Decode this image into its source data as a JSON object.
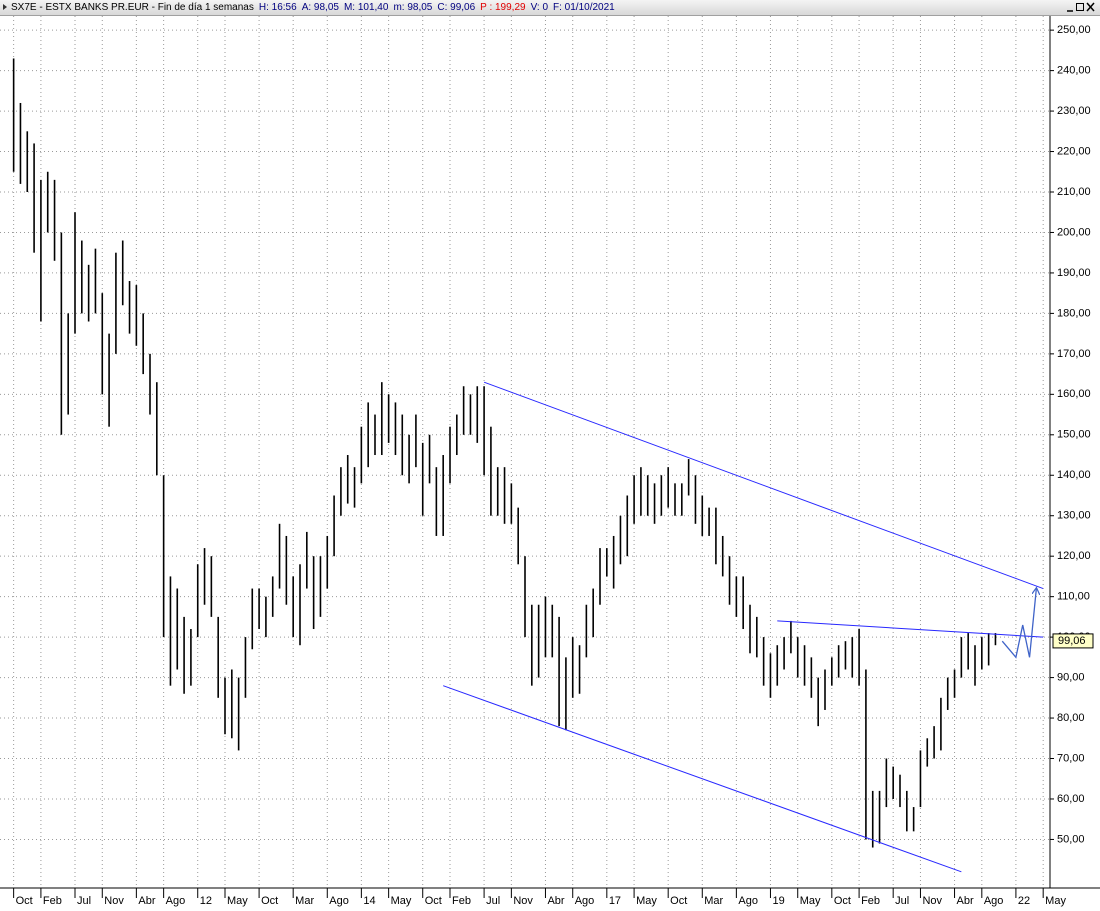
{
  "header": {
    "title": "SX7E - ESTX BANKS PR.EUR - Fin de día 1 semanas",
    "fields": [
      {
        "text": "H: 16:56",
        "color": "#000080"
      },
      {
        "text": "A: 98,05",
        "color": "#000080"
      },
      {
        "text": "M: 101,40",
        "color": "#000080"
      },
      {
        "text": "m: 98,05",
        "color": "#000080"
      },
      {
        "text": "C: 99,06",
        "color": "#000080"
      },
      {
        "text": "P : 199,29",
        "color": "#e00000"
      },
      {
        "text": "V: 0",
        "color": "#000080"
      },
      {
        "text": "F: 01/10/2021",
        "color": "#000080"
      }
    ]
  },
  "chart_data": {
    "type": "hilo",
    "color": "#000000",
    "grid": true,
    "x": [
      "2009-10",
      "2009-11",
      "2009-12",
      "2010-01",
      "2010-02",
      "2010-03",
      "2010-04",
      "2010-05",
      "2010-06",
      "2010-07",
      "2010-08",
      "2010-09",
      "2010-10",
      "2010-11",
      "2010-12",
      "2011-01",
      "2011-02",
      "2011-03",
      "2011-04",
      "2011-05",
      "2011-06",
      "2011-07",
      "2011-08",
      "2011-09",
      "2011-10",
      "2011-11",
      "2011-12",
      "2012-01",
      "2012-02",
      "2012-03",
      "2012-04",
      "2012-05",
      "2012-06",
      "2012-07",
      "2012-08",
      "2012-09",
      "2012-10",
      "2012-11",
      "2012-12",
      "2013-01",
      "2013-02",
      "2013-03",
      "2013-04",
      "2013-05",
      "2013-06",
      "2013-07",
      "2013-08",
      "2013-09",
      "2013-10",
      "2013-11",
      "2013-12",
      "2014-01",
      "2014-02",
      "2014-03",
      "2014-04",
      "2014-05",
      "2014-06",
      "2014-07",
      "2014-08",
      "2014-09",
      "2014-10",
      "2014-11",
      "2014-12",
      "2015-01",
      "2015-02",
      "2015-03",
      "2015-04",
      "2015-05",
      "2015-06",
      "2015-07",
      "2015-08",
      "2015-09",
      "2015-10",
      "2015-11",
      "2015-12",
      "2016-01",
      "2016-02",
      "2016-03",
      "2016-04",
      "2016-05",
      "2016-06",
      "2016-07",
      "2016-08",
      "2016-09",
      "2016-10",
      "2016-11",
      "2016-12",
      "2017-01",
      "2017-02",
      "2017-03",
      "2017-04",
      "2017-05",
      "2017-06",
      "2017-07",
      "2017-08",
      "2017-09",
      "2017-10",
      "2017-11",
      "2017-12",
      "2018-01",
      "2018-02",
      "2018-03",
      "2018-04",
      "2018-05",
      "2018-06",
      "2018-07",
      "2018-08",
      "2018-09",
      "2018-10",
      "2018-11",
      "2018-12",
      "2019-01",
      "2019-02",
      "2019-03",
      "2019-04",
      "2019-05",
      "2019-06",
      "2019-07",
      "2019-08",
      "2019-09",
      "2019-10",
      "2019-11",
      "2019-12",
      "2020-01",
      "2020-02",
      "2020-03",
      "2020-04",
      "2020-05",
      "2020-06",
      "2020-07",
      "2020-08",
      "2020-09",
      "2020-10",
      "2020-11",
      "2020-12",
      "2021-01",
      "2021-02",
      "2021-03",
      "2021-04",
      "2021-05",
      "2021-06",
      "2021-07",
      "2021-08",
      "2021-09",
      "2021-10"
    ],
    "high": [
      243,
      232,
      225,
      222,
      213,
      215,
      213,
      200,
      180,
      205,
      198,
      192,
      196,
      185,
      175,
      195,
      198,
      188,
      187,
      180,
      170,
      163,
      140,
      115,
      112,
      105,
      102,
      118,
      122,
      120,
      105,
      90,
      92,
      90,
      100,
      112,
      112,
      110,
      115,
      128,
      125,
      115,
      118,
      126,
      120,
      120,
      125,
      135,
      142,
      145,
      142,
      152,
      158,
      155,
      163,
      160,
      158,
      155,
      150,
      155,
      148,
      150,
      142,
      145,
      152,
      155,
      162,
      160,
      162,
      162,
      152,
      142,
      142,
      138,
      132,
      120,
      108,
      108,
      110,
      108,
      105,
      95,
      100,
      98,
      108,
      112,
      122,
      122,
      125,
      130,
      135,
      140,
      142,
      140,
      138,
      140,
      142,
      138,
      138,
      144,
      140,
      135,
      132,
      132,
      125,
      120,
      115,
      115,
      108,
      105,
      100,
      96,
      98,
      100,
      104,
      100,
      98,
      95,
      90,
      92,
      95,
      98,
      99,
      100,
      102,
      92,
      62,
      62,
      70,
      68,
      66,
      62,
      58,
      72,
      75,
      78,
      85,
      90,
      92,
      100,
      101,
      98,
      100,
      101,
      101
    ],
    "low": [
      215,
      212,
      210,
      195,
      178,
      200,
      193,
      150,
      155,
      175,
      180,
      178,
      180,
      160,
      152,
      170,
      182,
      175,
      172,
      165,
      155,
      140,
      100,
      88,
      92,
      86,
      88,
      100,
      108,
      105,
      85,
      76,
      75,
      72,
      85,
      97,
      102,
      100,
      105,
      112,
      108,
      100,
      98,
      112,
      102,
      105,
      112,
      120,
      130,
      133,
      132,
      138,
      142,
      145,
      145,
      148,
      145,
      140,
      138,
      142,
      130,
      138,
      125,
      125,
      138,
      145,
      150,
      150,
      148,
      140,
      130,
      130,
      128,
      128,
      118,
      100,
      88,
      90,
      95,
      95,
      78,
      77,
      85,
      86,
      95,
      100,
      108,
      115,
      112,
      118,
      120,
      128,
      130,
      130,
      128,
      130,
      132,
      130,
      130,
      135,
      128,
      125,
      125,
      118,
      115,
      108,
      105,
      102,
      96,
      95,
      88,
      85,
      88,
      92,
      96,
      90,
      88,
      85,
      78,
      82,
      88,
      90,
      92,
      90,
      88,
      50,
      48,
      49,
      58,
      60,
      58,
      52,
      52,
      58,
      68,
      70,
      72,
      82,
      85,
      90,
      92,
      88,
      92,
      93,
      98
    ],
    "xlim": [
      "2009-08",
      "2022-06"
    ],
    "xticks": [
      {
        "value": "2009-10",
        "label": "Oct"
      },
      {
        "value": "2010-02",
        "label": "Feb"
      },
      {
        "value": "2010-07",
        "label": "Jul"
      },
      {
        "value": "2010-11",
        "label": "Nov"
      },
      {
        "value": "2011-04",
        "label": "Abr"
      },
      {
        "value": "2011-08",
        "label": "Ago"
      },
      {
        "value": "2012-01",
        "label": "12"
      },
      {
        "value": "2012-05",
        "label": "May"
      },
      {
        "value": "2012-10",
        "label": "Oct"
      },
      {
        "value": "2013-03",
        "label": "Mar"
      },
      {
        "value": "2013-08",
        "label": "Ago"
      },
      {
        "value": "2014-01",
        "label": "14"
      },
      {
        "value": "2014-05",
        "label": "May"
      },
      {
        "value": "2014-10",
        "label": "Oct"
      },
      {
        "value": "2015-02",
        "label": "Feb"
      },
      {
        "value": "2015-07",
        "label": "Jul"
      },
      {
        "value": "2015-11",
        "label": "Nov"
      },
      {
        "value": "2016-04",
        "label": "Abr"
      },
      {
        "value": "2016-08",
        "label": "Ago"
      },
      {
        "value": "2017-01",
        "label": "17"
      },
      {
        "value": "2017-05",
        "label": "May"
      },
      {
        "value": "2017-10",
        "label": "Oct"
      },
      {
        "value": "2018-03",
        "label": "Mar"
      },
      {
        "value": "2018-08",
        "label": "Ago"
      },
      {
        "value": "2019-01",
        "label": "19"
      },
      {
        "value": "2019-05",
        "label": "May"
      },
      {
        "value": "2019-10",
        "label": "Oct"
      },
      {
        "value": "2020-02",
        "label": "Feb"
      },
      {
        "value": "2020-07",
        "label": "Jul"
      },
      {
        "value": "2020-11",
        "label": "Nov"
      },
      {
        "value": "2021-04",
        "label": "Abr"
      },
      {
        "value": "2021-08",
        "label": "Ago"
      },
      {
        "value": "2022-01",
        "label": "22"
      },
      {
        "value": "2022-05",
        "label": "May"
      }
    ],
    "ylim": [
      38,
      253
    ],
    "yticks": [
      {
        "value": 50,
        "label": "50,00"
      },
      {
        "value": 60,
        "label": "60,00"
      },
      {
        "value": 70,
        "label": "70,00"
      },
      {
        "value": 80,
        "label": "80,00"
      },
      {
        "value": 90,
        "label": "90,00"
      },
      {
        "value": 100,
        "label": "100,00"
      },
      {
        "value": 110,
        "label": "110,00"
      },
      {
        "value": 120,
        "label": "120,00"
      },
      {
        "value": 130,
        "label": "130,00"
      },
      {
        "value": 140,
        "label": "140,00"
      },
      {
        "value": 150,
        "label": "150,00"
      },
      {
        "value": 160,
        "label": "160,00"
      },
      {
        "value": 170,
        "label": "170,00"
      },
      {
        "value": 180,
        "label": "180,00"
      },
      {
        "value": 190,
        "label": "190,00"
      },
      {
        "value": 200,
        "label": "200,00"
      },
      {
        "value": 210,
        "label": "210,00"
      },
      {
        "value": 220,
        "label": "220,00"
      },
      {
        "value": 230,
        "label": "230,00"
      },
      {
        "value": 240,
        "label": "240,00"
      },
      {
        "value": 250,
        "label": "250,00"
      }
    ],
    "last_price": {
      "value": 99.06,
      "label": "99,06"
    },
    "trendlines": [
      {
        "x": [
          "2015-07",
          "2022-05"
        ],
        "y": [
          163,
          112
        ],
        "color": "#2828ff"
      },
      {
        "x": [
          "2015-01",
          "2021-05"
        ],
        "y": [
          88,
          42
        ],
        "color": "#2828ff"
      },
      {
        "x": [
          "2019-02",
          "2022-05"
        ],
        "y": [
          104,
          100
        ],
        "color": "#2828ff"
      }
    ],
    "arrow": {
      "x": [
        "2021-11",
        "2022-01",
        "2022-02",
        "2022-03",
        "2022-04"
      ],
      "y": [
        99,
        95,
        103,
        95,
        112
      ],
      "color": "#3f63c8"
    }
  }
}
